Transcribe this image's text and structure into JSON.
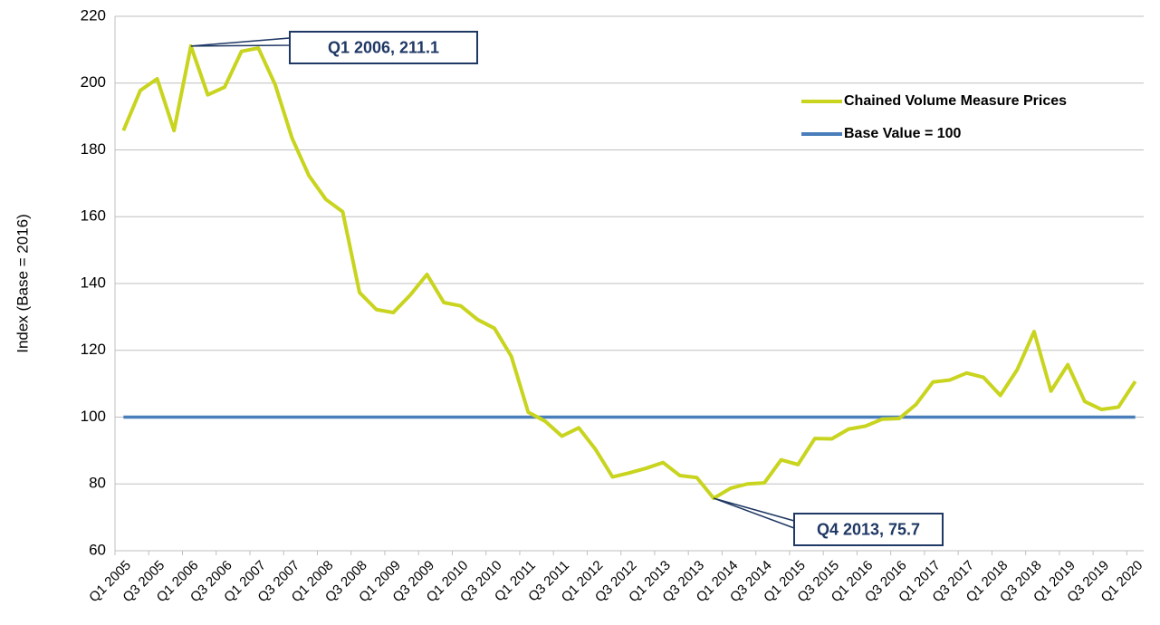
{
  "chart_data": {
    "type": "line",
    "y_label": "Index (Base = 2016)",
    "categories": [
      "Q1 2005",
      null,
      "Q3 2005",
      null,
      "Q1 2006",
      null,
      "Q3 2006",
      null,
      "Q1 2007",
      null,
      "Q3 2007",
      null,
      "Q1 2008",
      null,
      "Q3 2008",
      null,
      "Q1 2009",
      null,
      "Q3 2009",
      null,
      "Q1 2010",
      null,
      "Q3 2010",
      null,
      "Q1 2011",
      null,
      "Q3 2011",
      null,
      "Q1 2012",
      null,
      "Q3 2012",
      null,
      "Q1 2013",
      null,
      "Q3 2013",
      null,
      "Q1 2014",
      null,
      "Q3 2014",
      null,
      "Q1 2015",
      null,
      "Q3 2015",
      null,
      "Q1 2016",
      null,
      "Q3 2016",
      null,
      "Q1 2017",
      null,
      "Q3 2017",
      null,
      "Q1 2018",
      null,
      "Q3 2018",
      null,
      "Q1 2019",
      null,
      "Q3 2019",
      null,
      "Q1 2020"
    ],
    "series": [
      {
        "name": "Chained Volume Measure Prices",
        "color": "#c8d41e",
        "values": [
          185.8,
          197.8,
          201.3,
          185.8,
          211.1,
          196.5,
          198.8,
          209.5,
          210.5,
          199.5,
          183.5,
          172.3,
          165.2,
          161.5,
          137.3,
          132.2,
          131.3,
          136.5,
          142.7,
          134.3,
          133.3,
          129.2,
          126.6,
          118.2,
          101.5,
          98.8,
          94.3,
          96.8,
          90.3,
          82.1,
          83.3,
          84.7,
          86.4,
          82.5,
          81.9,
          75.7,
          78.7,
          80.0,
          80.3,
          87.2,
          85.8,
          93.6,
          93.5,
          96.4,
          97.3,
          99.4,
          99.6,
          103.8,
          110.5,
          111.1,
          113.2,
          111.9,
          106.5,
          114.2,
          125.6,
          107.8,
          115.7,
          104.7,
          102.3,
          103.0,
          110.7
        ]
      },
      {
        "name": "Base Value = 100",
        "color": "#4a7ebb",
        "values": [
          100,
          100,
          100,
          100,
          100,
          100,
          100,
          100,
          100,
          100,
          100,
          100,
          100,
          100,
          100,
          100,
          100,
          100,
          100,
          100,
          100,
          100,
          100,
          100,
          100,
          100,
          100,
          100,
          100,
          100,
          100,
          100,
          100,
          100,
          100,
          100,
          100,
          100,
          100,
          100,
          100,
          100,
          100,
          100,
          100,
          100,
          100,
          100,
          100,
          100,
          100,
          100,
          100,
          100,
          100,
          100,
          100,
          100,
          100,
          100,
          100
        ]
      }
    ],
    "annotations": [
      {
        "text": "Q1 2006, 211.1"
      },
      {
        "text": "Q4 2013, 75.7"
      }
    ],
    "ylim": [
      60,
      220
    ],
    "yticks": [
      60,
      80,
      100,
      120,
      140,
      160,
      180,
      200,
      220
    ],
    "grid": true,
    "legend": "upper right"
  }
}
